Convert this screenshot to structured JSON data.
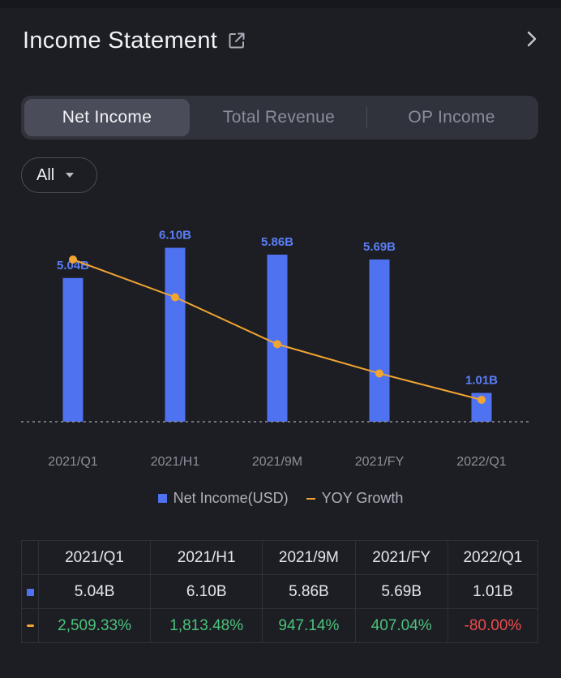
{
  "header": {
    "title": "Income Statement"
  },
  "tabs": [
    {
      "label": "Net Income",
      "active": true
    },
    {
      "label": "Total Revenue",
      "active": false
    },
    {
      "label": "OP Income",
      "active": false
    }
  ],
  "filter": {
    "label": "All"
  },
  "colors": {
    "bar": "#4f72f0",
    "line": "#f2a531",
    "positive": "#4cc27b",
    "negative": "#ef4b4b"
  },
  "chart_data": {
    "type": "bar",
    "categories": [
      "2021/Q1",
      "2021/H1",
      "2021/9M",
      "2021/FY",
      "2022/Q1"
    ],
    "series": [
      {
        "name": "Net Income(USD)",
        "type": "bar",
        "values": [
          5.04,
          6.1,
          5.86,
          5.69,
          1.01
        ],
        "labels": [
          "5.04B",
          "6.10B",
          "5.86B",
          "5.69B",
          "1.01B"
        ]
      },
      {
        "name": "YOY Growth",
        "type": "line",
        "values": [
          2509.33,
          1813.48,
          947.14,
          407.04,
          -80.0
        ]
      }
    ]
  },
  "table": {
    "headers": [
      "2021/Q1",
      "2021/H1",
      "2021/9M",
      "2021/FY",
      "2022/Q1"
    ],
    "income_row": [
      "5.04B",
      "6.10B",
      "5.86B",
      "5.69B",
      "1.01B"
    ],
    "growth_row": [
      "2,509.33%",
      "1,813.48%",
      "947.14%",
      "407.04%",
      "-80.00%"
    ]
  }
}
